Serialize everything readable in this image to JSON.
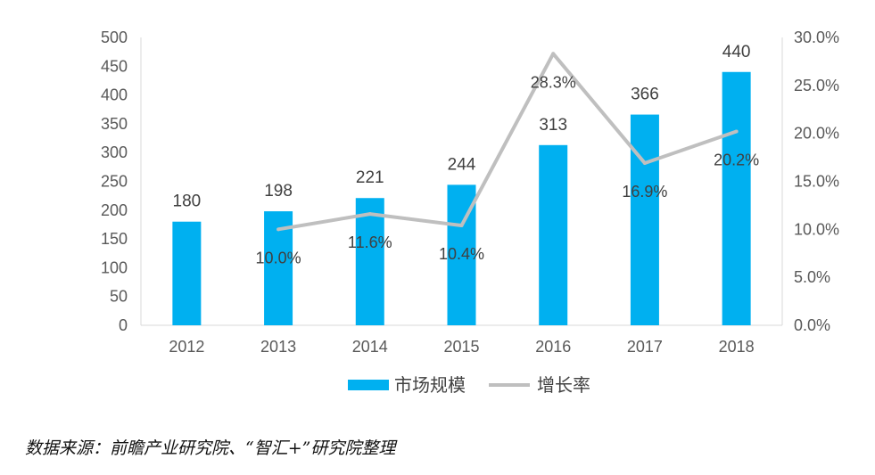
{
  "chart_data": {
    "type": "bar",
    "categories": [
      "2012",
      "2013",
      "2014",
      "2015",
      "2016",
      "2017",
      "2018"
    ],
    "series": [
      {
        "name": "市场规模",
        "type": "bar",
        "axis": "left",
        "color": "#00B0F0",
        "values": [
          180,
          198,
          221,
          244,
          313,
          366,
          440
        ],
        "labels": [
          "180",
          "198",
          "221",
          "244",
          "313",
          "366",
          "440"
        ]
      },
      {
        "name": "增长率",
        "type": "line",
        "axis": "right",
        "color": "#BFBFBF",
        "values": [
          null,
          10.0,
          11.6,
          10.4,
          28.3,
          16.9,
          20.2
        ],
        "labels": [
          "",
          "10.0%",
          "11.6%",
          "10.4%",
          "28.3%",
          "16.9%",
          "20.2%"
        ]
      }
    ],
    "y_left": {
      "min": 0,
      "max": 500,
      "step": 50,
      "ticks": [
        "0",
        "50",
        "100",
        "150",
        "200",
        "250",
        "300",
        "350",
        "400",
        "450",
        "500"
      ]
    },
    "y_right": {
      "min": 0,
      "max": 30,
      "step": 5,
      "ticks": [
        "0.0%",
        "5.0%",
        "10.0%",
        "15.0%",
        "20.0%",
        "25.0%",
        "30.0%"
      ]
    },
    "grid": false,
    "legend": "bottom"
  },
  "source_text": "数据来源：前瞻产业研究院、“智汇+”研究院整理"
}
